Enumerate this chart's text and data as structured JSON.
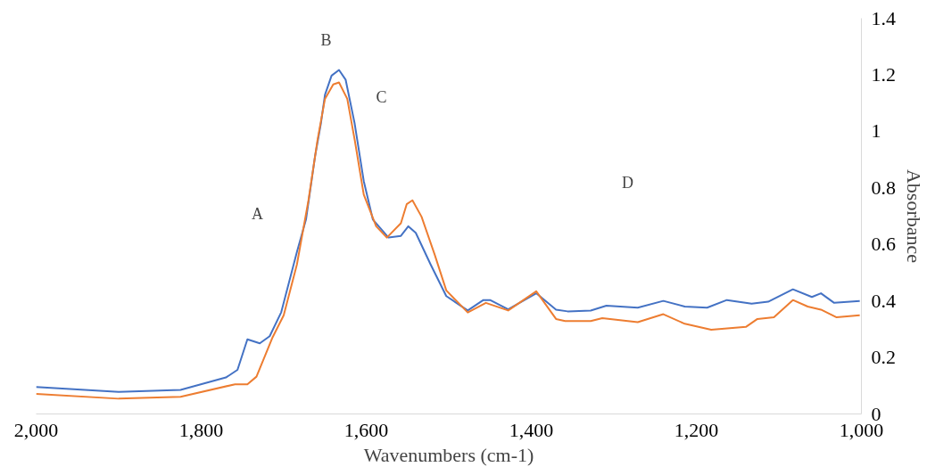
{
  "chart_data": {
    "type": "line",
    "xlabel": "Wavenumbers (cm-1)",
    "ylabel": "Absorbance",
    "xlim": [
      2000,
      1000
    ],
    "xticks": [
      {
        "value": 2000,
        "label": "2,000"
      },
      {
        "value": 1800,
        "label": "1,800"
      },
      {
        "value": 1600,
        "label": "1,600"
      },
      {
        "value": 1400,
        "label": "1,400"
      },
      {
        "value": 1200,
        "label": "1,200"
      },
      {
        "value": 1000,
        "label": "1,000"
      }
    ],
    "ylim": [
      0,
      1.4
    ],
    "yticks": [
      0,
      0.2,
      0.4,
      0.6,
      0.8,
      1,
      1.2,
      1.4
    ],
    "grid": false,
    "marker": "none",
    "line_style": "solid",
    "annotations": [
      "A",
      "B",
      "C",
      "D"
    ],
    "series": [
      {
        "color": "#4472c4",
        "x": [
          2000,
          1900,
          1825,
          1770,
          1756,
          1744,
          1729,
          1717,
          1703,
          1684,
          1673,
          1662,
          1655,
          1650,
          1642,
          1633,
          1625,
          1614,
          1603,
          1592,
          1573,
          1558,
          1549,
          1540,
          1522,
          1503,
          1477,
          1458,
          1450,
          1428,
          1394,
          1370,
          1356,
          1328,
          1309,
          1271,
          1240,
          1214,
          1187,
          1163,
          1133,
          1113,
          1083,
          1060,
          1049,
          1033,
          1002
        ],
        "values": [
          0.095,
          0.078,
          0.085,
          0.129,
          0.156,
          0.264,
          0.25,
          0.275,
          0.36,
          0.573,
          0.688,
          0.912,
          1.027,
          1.129,
          1.197,
          1.217,
          1.183,
          1.027,
          0.824,
          0.688,
          0.624,
          0.63,
          0.664,
          0.641,
          0.529,
          0.417,
          0.366,
          0.403,
          0.403,
          0.37,
          0.427,
          0.369,
          0.363,
          0.366,
          0.383,
          0.376,
          0.4,
          0.38,
          0.376,
          0.403,
          0.39,
          0.397,
          0.441,
          0.414,
          0.427,
          0.393,
          0.4
        ]
      },
      {
        "color": "#ed7d31",
        "x": [
          2000,
          1900,
          1825,
          1759,
          1744,
          1733,
          1714,
          1700,
          1684,
          1670,
          1659,
          1650,
          1640,
          1633,
          1623,
          1614,
          1603,
          1588,
          1575,
          1558,
          1551,
          1544,
          1533,
          1517,
          1503,
          1477,
          1455,
          1428,
          1394,
          1370,
          1359,
          1328,
          1314,
          1271,
          1240,
          1214,
          1182,
          1140,
          1126,
          1106,
          1083,
          1065,
          1049,
          1030,
          1002
        ],
        "values": [
          0.071,
          0.054,
          0.061,
          0.105,
          0.105,
          0.132,
          0.268,
          0.349,
          0.529,
          0.756,
          0.97,
          1.115,
          1.166,
          1.173,
          1.115,
          0.97,
          0.776,
          0.664,
          0.624,
          0.675,
          0.742,
          0.756,
          0.698,
          0.563,
          0.437,
          0.359,
          0.393,
          0.366,
          0.434,
          0.336,
          0.329,
          0.329,
          0.339,
          0.325,
          0.353,
          0.319,
          0.298,
          0.308,
          0.336,
          0.342,
          0.403,
          0.38,
          0.369,
          0.342,
          0.349
        ]
      }
    ]
  }
}
